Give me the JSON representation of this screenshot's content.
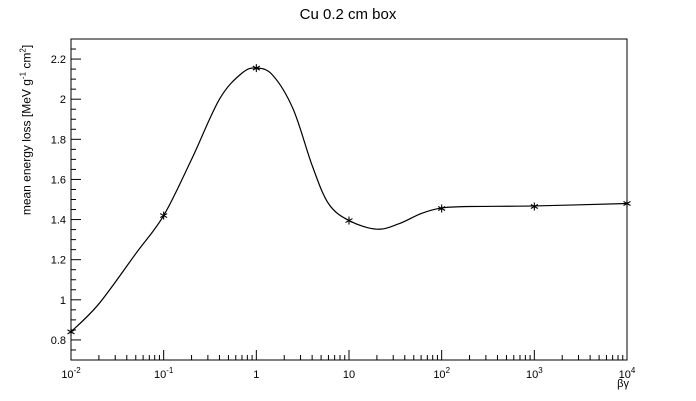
{
  "chart_data": {
    "type": "line",
    "title": "Cu 0.2 cm box",
    "xlabel": "βγ",
    "ylabel": "mean energy loss [MeV g",
    "ylabel_exp1": "-1",
    "ylabel_mid": " cm",
    "ylabel_exp2": "2",
    "ylabel_end": "]",
    "x_scale": "log",
    "xlim": [
      0.01,
      10000
    ],
    "ylim": [
      0.7,
      2.3
    ],
    "grid": false,
    "x_ticks": [
      {
        "base": "10",
        "exp": "-2"
      },
      {
        "base": "10",
        "exp": "-1"
      },
      {
        "base": "1",
        "exp": ""
      },
      {
        "base": "10",
        "exp": ""
      },
      {
        "base": "10",
        "exp": "2"
      },
      {
        "base": "10",
        "exp": "3"
      },
      {
        "base": "10",
        "exp": "4"
      }
    ],
    "y_ticks": [
      "0.8",
      "1",
      "1.2",
      "1.4",
      "1.6",
      "1.8",
      "2",
      "2.2"
    ],
    "series": [
      {
        "marker": "asterisk",
        "x": [
          0.01,
          0.1,
          1,
          10,
          100,
          1000,
          10000
        ],
        "y": [
          0.84,
          1.42,
          2.155,
          1.395,
          1.455,
          1.465,
          1.48
        ]
      }
    ],
    "curve_points": [
      [
        0.01,
        0.84
      ],
      [
        0.02,
        0.98
      ],
      [
        0.05,
        1.23
      ],
      [
        0.1,
        1.42
      ],
      [
        0.2,
        1.7
      ],
      [
        0.4,
        2.0
      ],
      [
        0.7,
        2.13
      ],
      [
        1,
        2.155
      ],
      [
        1.5,
        2.12
      ],
      [
        2.5,
        1.95
      ],
      [
        4,
        1.67
      ],
      [
        6,
        1.48
      ],
      [
        10,
        1.395
      ],
      [
        20,
        1.352
      ],
      [
        35,
        1.38
      ],
      [
        60,
        1.43
      ],
      [
        100,
        1.458
      ],
      [
        200,
        1.465
      ],
      [
        1000,
        1.468
      ],
      [
        10000,
        1.48
      ]
    ],
    "colors": {
      "line": "#000000",
      "axis": "#000000",
      "background": "#ffffff"
    }
  }
}
